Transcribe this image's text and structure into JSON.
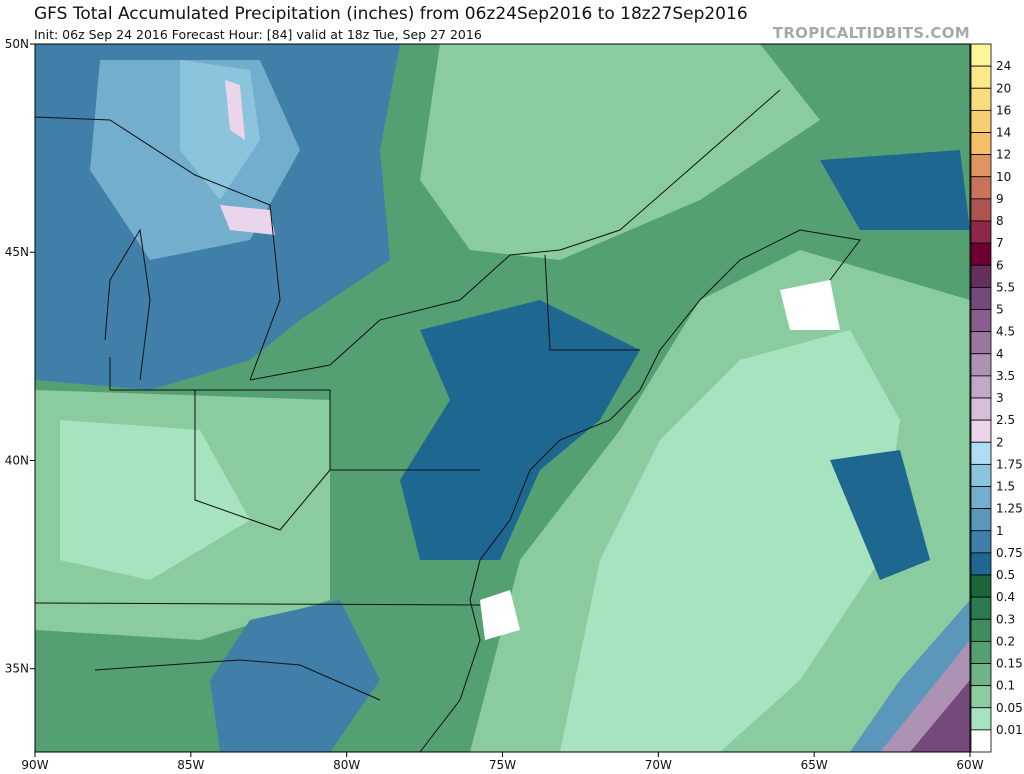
{
  "header": {
    "title": "GFS Total Accumulated Precipitation (inches) from 06z24Sep2016 to 18z27Sep2016",
    "subtitle": "Init: 06z Sep 24 2016   Forecast Hour: [84]   valid at 18z Tue, Sep 27 2016",
    "brand": "TROPICALTIDBITS.COM"
  },
  "map": {
    "lon_range": [
      -90,
      -60
    ],
    "lat_range": [
      33,
      50
    ],
    "lon_labels": [
      "90W",
      "85W",
      "80W",
      "75W",
      "70W",
      "65W",
      "60W"
    ],
    "lat_labels": [
      "50N",
      "45N",
      "40N",
      "35N"
    ]
  },
  "colorbar": {
    "labels": [
      "24",
      "20",
      "16",
      "14",
      "12",
      "10",
      "9",
      "8",
      "7",
      "6",
      "5.5",
      "5",
      "4.5",
      "4",
      "3.5",
      "3",
      "2.5",
      "2",
      "1.75",
      "1.5",
      "1.25",
      "1",
      "0.75",
      "0.5",
      "0.4",
      "0.3",
      "0.2",
      "0.15",
      "0.1",
      "0.05",
      "0.01"
    ],
    "colors": [
      "#fdf59a",
      "#fbe98a",
      "#f9dc80",
      "#f7cd74",
      "#f5be69",
      "#df9560",
      "#c8735a",
      "#ad5350",
      "#8e2a48",
      "#6e0031",
      "#63305e",
      "#744a7b",
      "#875e8d",
      "#9a779f",
      "#ae92b4",
      "#c2a7c6",
      "#d7bfd9",
      "#ebd5ea",
      "#aedcf0",
      "#8cc4de",
      "#74aecd",
      "#5a97bb",
      "#3f7fa8",
      "#1e6791",
      "#1a6639",
      "#2d7a4e",
      "#3f8c5e",
      "#55a073",
      "#6fb488",
      "#8acba0",
      "#a8e3c0",
      "#ffffff"
    ]
  }
}
